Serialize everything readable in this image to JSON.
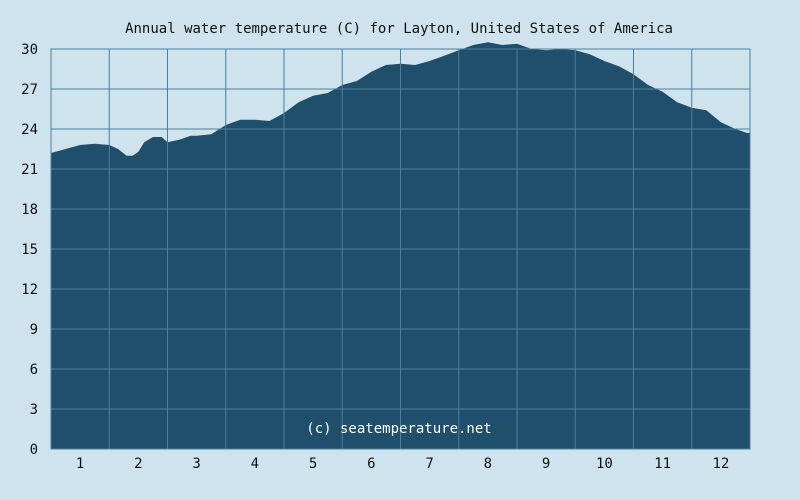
{
  "chart_data": {
    "type": "area",
    "title": "Annual water temperature (C) for Layton, United States of America",
    "watermark": "(c) seatemperature.net",
    "xlabel": "",
    "ylabel": "",
    "x_tick_labels": [
      "1",
      "2",
      "3",
      "4",
      "5",
      "6",
      "7",
      "8",
      "9",
      "10",
      "11",
      "12"
    ],
    "y_ticks": [
      0,
      3,
      6,
      9,
      12,
      15,
      18,
      21,
      24,
      27,
      30
    ],
    "ylim": [
      0,
      30
    ],
    "grid": true,
    "colors": {
      "fill": "#1f4f6a",
      "grid": "#4f7f98",
      "background": "#cfe3ee",
      "text": "#111111",
      "watermark": "#ffffff"
    },
    "x_unit": "month (1 = January … 12 = December, ticks at mid-month)",
    "x": [
      0.5,
      0.75,
      1.0,
      1.25,
      1.5,
      1.65,
      1.8,
      1.9,
      2.0,
      2.1,
      2.25,
      2.4,
      2.5,
      2.7,
      2.9,
      3.0,
      3.25,
      3.5,
      3.75,
      4.0,
      4.25,
      4.5,
      4.75,
      5.0,
      5.25,
      5.5,
      5.75,
      6.0,
      6.25,
      6.5,
      6.75,
      7.0,
      7.25,
      7.5,
      7.75,
      8.0,
      8.25,
      8.5,
      8.75,
      9.0,
      9.25,
      9.5,
      9.75,
      10.0,
      10.25,
      10.5,
      10.75,
      11.0,
      11.25,
      11.5,
      11.75,
      12.0,
      12.25,
      12.45
    ],
    "values": [
      22.2,
      22.5,
      22.8,
      22.9,
      22.8,
      22.5,
      22.0,
      22.0,
      22.3,
      23.0,
      23.4,
      23.4,
      23.0,
      23.2,
      23.5,
      23.5,
      23.6,
      24.3,
      24.7,
      24.7,
      24.6,
      25.2,
      26.0,
      26.5,
      26.7,
      27.3,
      27.6,
      28.3,
      28.8,
      28.9,
      28.8,
      29.1,
      29.5,
      29.9,
      30.3,
      30.5,
      30.3,
      30.4,
      30.0,
      29.9,
      30.0,
      29.9,
      29.6,
      29.1,
      28.7,
      28.1,
      27.3,
      26.8,
      26.0,
      25.6,
      25.4,
      24.5,
      24.0,
      23.7
    ]
  }
}
